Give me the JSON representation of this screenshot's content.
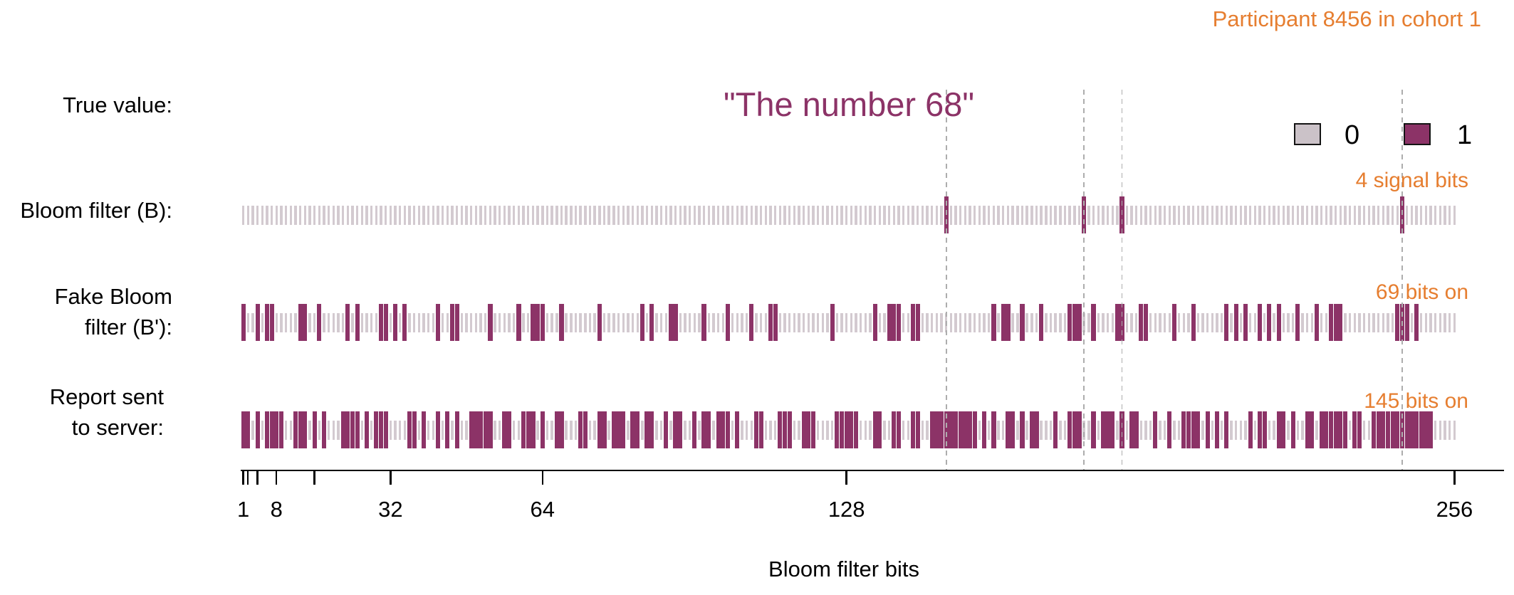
{
  "header": {
    "participant_label": "Participant 8456 in cohort 1"
  },
  "rows": {
    "true_value": {
      "label": "True value:",
      "value": "\"The number 68\""
    },
    "bloom": {
      "label": "Bloom filter (B):",
      "annotation": "4 signal bits"
    },
    "fake": {
      "label_line1": "Fake Bloom",
      "label_line2": "filter (B'):",
      "annotation": "69 bits on"
    },
    "report": {
      "label_line1": "Report sent",
      "label_line2": "to server:",
      "annotation": "145 bits on"
    }
  },
  "legend": {
    "zero_label": "0",
    "one_label": "1"
  },
  "colors": {
    "accent_orange": "#E67E30",
    "bit_on_purple": "#8C3367",
    "bit_off_gray": "#D3CAD0",
    "legend_zero_fill": "#CBC2C8",
    "dashed_guide": "#ADADAD",
    "text_black": "#000000"
  },
  "chart_data": {
    "type": "heatmap",
    "title": "\"The number 68\"",
    "xlabel": "Bloom filter bits",
    "num_bits": 256,
    "axis_tick_bits": [
      1,
      2,
      4,
      8,
      16,
      32,
      64,
      128,
      256
    ],
    "axis_labeled_ticks": [
      {
        "bit": 1,
        "label": "1"
      },
      {
        "bit": 8,
        "label": "8"
      },
      {
        "bit": 32,
        "label": "32"
      },
      {
        "bit": 64,
        "label": "64"
      },
      {
        "bit": 128,
        "label": "128"
      },
      {
        "bit": 256,
        "label": "256"
      }
    ],
    "signal_bits": [
      149,
      178,
      186,
      245
    ],
    "series": [
      {
        "name": "Bloom filter (B)",
        "annotation": "4 signal bits",
        "bits_on": [
          149,
          178,
          186,
          245
        ]
      },
      {
        "name": "Fake Bloom filter (B')",
        "annotation": "69 bits on",
        "bits_on": [
          1,
          4,
          6,
          7,
          13,
          14,
          17,
          23,
          25,
          30,
          31,
          33,
          35,
          42,
          45,
          46,
          53,
          59,
          62,
          63,
          64,
          68,
          76,
          85,
          87,
          91,
          92,
          98,
          103,
          108,
          112,
          113,
          125,
          134,
          137,
          138,
          139,
          142,
          143,
          159,
          161,
          162,
          165,
          169,
          175,
          176,
          177,
          180,
          185,
          186,
          190,
          191,
          197,
          201,
          208,
          210,
          212,
          215,
          217,
          219,
          223,
          227,
          230,
          231,
          232,
          244,
          245,
          246,
          248
        ]
      },
      {
        "name": "Report sent to server",
        "annotation": "145 bits on",
        "bits_on": [
          1,
          2,
          4,
          6,
          7,
          8,
          9,
          12,
          13,
          14,
          16,
          18,
          22,
          23,
          24,
          25,
          27,
          29,
          30,
          31,
          36,
          37,
          39,
          42,
          44,
          46,
          49,
          50,
          51,
          52,
          53,
          56,
          57,
          60,
          61,
          62,
          64,
          67,
          68,
          72,
          73,
          76,
          77,
          79,
          80,
          81,
          83,
          84,
          86,
          87,
          90,
          92,
          93,
          96,
          98,
          99,
          101,
          102,
          103,
          105,
          109,
          110,
          114,
          115,
          116,
          119,
          120,
          121,
          126,
          127,
          128,
          129,
          130,
          134,
          135,
          138,
          139,
          142,
          143,
          146,
          147,
          148,
          149,
          150,
          151,
          152,
          153,
          154,
          155,
          157,
          159,
          162,
          163,
          165,
          167,
          168,
          172,
          175,
          176,
          177,
          180,
          182,
          183,
          184,
          186,
          188,
          189,
          193,
          196,
          199,
          200,
          201,
          202,
          204,
          206,
          208,
          213,
          215,
          216,
          219,
          220,
          222,
          225,
          226,
          228,
          229,
          230,
          231,
          232,
          233,
          235,
          236,
          239,
          240,
          241,
          242,
          243,
          244,
          245,
          246,
          247,
          248,
          249,
          250,
          251
        ]
      }
    ],
    "legend": [
      {
        "value": 0,
        "label": "0"
      },
      {
        "value": 1,
        "label": "1"
      }
    ]
  }
}
